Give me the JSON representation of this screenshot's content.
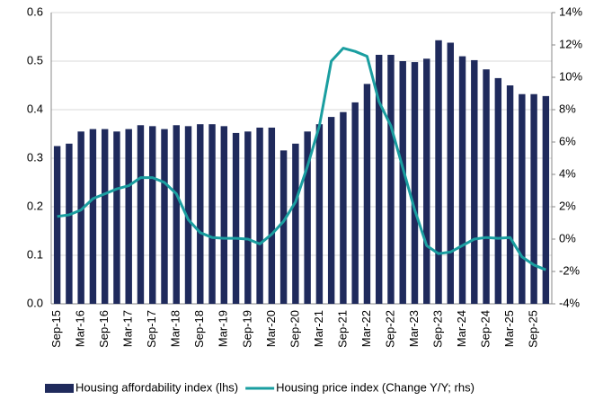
{
  "chart_data": {
    "type": "bar_line",
    "categories": [
      "Sep-15",
      null,
      "Mar-16",
      null,
      "Sep-16",
      null,
      "Mar-17",
      null,
      "Sep-17",
      null,
      "Mar-18",
      null,
      "Sep-18",
      null,
      "Mar-19",
      null,
      "Sep-19",
      null,
      "Mar-20",
      null,
      "Sep-20",
      null,
      "Mar-21",
      null,
      "Sep-21",
      null,
      "Mar-22",
      null,
      "Sep-22",
      null,
      "Mar-23",
      null,
      "Sep-23",
      null,
      "Mar-24",
      null,
      "Sep-24",
      null,
      "Mar-25",
      null,
      "Sep-25",
      null
    ],
    "series": [
      {
        "name": "Housing affordability index (lhs)",
        "color": "#1f2a5c",
        "type": "bar",
        "values": [
          0.325,
          0.33,
          0.355,
          0.36,
          0.36,
          0.355,
          0.36,
          0.368,
          0.366,
          0.36,
          0.368,
          0.366,
          0.37,
          0.37,
          0.366,
          0.352,
          0.355,
          0.363,
          0.363,
          0.316,
          0.33,
          0.355,
          0.37,
          0.385,
          0.395,
          0.415,
          0.453,
          0.513,
          0.513,
          0.5,
          0.498,
          0.505,
          0.543,
          0.538,
          0.51,
          0.502,
          0.483,
          0.465,
          0.45,
          0.432,
          0.432,
          0.428
        ]
      },
      {
        "name": "Housing price index (Change Y/Y; rhs)",
        "color": "#1a9ea0",
        "type": "line",
        "axis": "y2",
        "values": [
          1.4,
          1.5,
          1.8,
          2.5,
          2.8,
          3.1,
          3.3,
          3.8,
          3.8,
          3.5,
          2.8,
          1.2,
          0.4,
          0.1,
          0.05,
          0.05,
          0.0,
          -0.3,
          0.3,
          1.1,
          2.3,
          4.5,
          7.0,
          11.0,
          11.8,
          11.6,
          11.3,
          8.5,
          7.0,
          4.4,
          1.8,
          -0.4,
          -0.9,
          -0.8,
          -0.4,
          0.0,
          0.1,
          0.05,
          0.1,
          -1.1,
          -1.6,
          -1.9
        ]
      }
    ],
    "ylim": [
      0,
      0.6
    ],
    "yticks": [
      {
        "value": 0,
        "label": "0.0"
      },
      0.1,
      0.2,
      0.3,
      0.4,
      0.5,
      0.6
    ],
    "y2lim": [
      -4,
      14
    ],
    "y2ticks": [
      {
        "value": -4,
        "label": "-4%"
      },
      {
        "value": -2,
        "label": "-2%"
      },
      {
        "value": 0,
        "label": "0%"
      },
      {
        "value": 2,
        "label": "2%"
      },
      {
        "value": 4,
        "label": "4%"
      },
      {
        "value": 6,
        "label": "6%"
      },
      {
        "value": 8,
        "label": "8%"
      },
      {
        "value": 10,
        "label": "10%"
      },
      {
        "value": 12,
        "label": "12%"
      },
      {
        "value": 14,
        "label": "14%"
      }
    ],
    "grid": true,
    "legend": "bottom"
  }
}
